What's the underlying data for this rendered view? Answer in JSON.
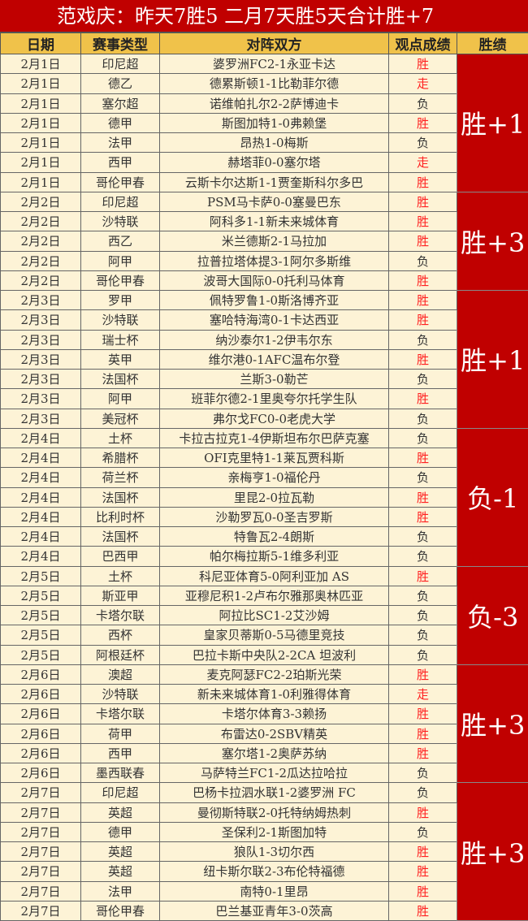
{
  "title": "范戏庆：昨天7胜5  二月7天胜5天合计胜+7",
  "headers": [
    "日期",
    "赛事类型",
    "对阵双方",
    "观点成绩",
    "胜绩"
  ],
  "colors": {
    "title_bg": "#c00000",
    "header_bg": "#f0c24a",
    "row_bg": "#fdf3d6",
    "win_text": "#ff2020",
    "group_bg": "#c00000"
  },
  "groups": [
    {
      "summary": "胜+1",
      "rows": [
        [
          "2月1日",
          "印尼超",
          "婆罗洲FC2-1永亚卡达",
          "胜"
        ],
        [
          "2月1日",
          "德乙",
          "德累斯顿1-1比勒菲尔德",
          "走"
        ],
        [
          "2月1日",
          "塞尔超",
          "诺维帕扎尔2-2萨博迪卡",
          "负"
        ],
        [
          "2月1日",
          "德甲",
          "斯图加特1-0弗赖堡",
          "胜"
        ],
        [
          "2月1日",
          "法甲",
          "昂热1-0梅斯",
          "负"
        ],
        [
          "2月1日",
          "西甲",
          "赫塔菲0-0塞尔塔",
          "走"
        ],
        [
          "2月1日",
          "哥伦甲春",
          "云斯卡尔达斯1-1贾奎斯科尔多巴",
          "胜"
        ]
      ]
    },
    {
      "summary": "胜+3",
      "rows": [
        [
          "2月2日",
          "印尼超",
          "PSM马卡萨0-0塞曼巴东",
          "胜"
        ],
        [
          "2月2日",
          "沙特联",
          "阿科多1-1新未来城体育",
          "胜"
        ],
        [
          "2月2日",
          "西乙",
          "米兰德斯2-1马拉加",
          "胜"
        ],
        [
          "2月2日",
          "阿甲",
          "拉普拉塔体提3-1阿尔多斯维",
          "负"
        ],
        [
          "2月2日",
          "哥伦甲春",
          "波哥大国际0-0托利马体育",
          "胜"
        ]
      ]
    },
    {
      "summary": "胜+1",
      "rows": [
        [
          "2月3日",
          "罗甲",
          "佩特罗鲁1-0斯洛博齐亚",
          "胜"
        ],
        [
          "2月3日",
          "沙特联",
          "塞哈特海湾0-1卡达西亚",
          "胜"
        ],
        [
          "2月3日",
          "瑞士杯",
          "纳沙泰尔1-2伊韦尔东",
          "负"
        ],
        [
          "2月3日",
          "英甲",
          "维尔港0-1AFC温布尔登",
          "胜"
        ],
        [
          "2月3日",
          "法国杯",
          "兰斯3-0勒芒",
          "负"
        ],
        [
          "2月3日",
          "阿甲",
          "班菲尔德2-1里奥夸尔托学生队",
          "胜"
        ],
        [
          "2月3日",
          "美冠杯",
          "弗尔戈FC0-0老虎大学",
          "负"
        ]
      ]
    },
    {
      "summary": "负-1",
      "rows": [
        [
          "2月4日",
          "土杯",
          "卡拉古拉克1-4伊斯坦布尔巴萨克塞",
          "负"
        ],
        [
          "2月4日",
          "希腊杯",
          "OFI克里特1-1莱瓦贾科斯",
          "胜"
        ],
        [
          "2月4日",
          "荷兰杯",
          "亲梅亨1-0福伦丹",
          "负"
        ],
        [
          "2月4日",
          "法国杯",
          "里昆2-0拉瓦勒",
          "胜"
        ],
        [
          "2月4日",
          "比利时杯",
          "沙勒罗瓦0-0圣吉罗斯",
          "胜"
        ],
        [
          "2月4日",
          "法国杯",
          "特鲁瓦2-4朗斯",
          "负"
        ],
        [
          "2月4日",
          "巴西甲",
          "帕尔梅拉斯5-1维多利亚",
          "负"
        ]
      ]
    },
    {
      "summary": "负-3",
      "rows": [
        [
          "2月5日",
          "土杯",
          "科尼亚体育5-0阿利亚加 AS",
          "胜"
        ],
        [
          "2月5日",
          "斯亚甲",
          "亚穆尼积1-2卢布尔雅那奥林匹亚",
          "负"
        ],
        [
          "2月5日",
          "卡塔尔联",
          "阿拉比SC1-2艾沙姆",
          "负"
        ],
        [
          "2月5日",
          "西杯",
          "皇家贝蒂斯0-5马德里竞技",
          "负"
        ],
        [
          "2月5日",
          "阿根廷杯",
          "巴拉卡斯中央队2-2CA 坦波利",
          "负"
        ]
      ]
    },
    {
      "summary": "胜+3",
      "rows": [
        [
          "2月6日",
          "澳超",
          "麦克阿瑟FC2-2珀斯光荣",
          "胜"
        ],
        [
          "2月6日",
          "沙特联",
          "新未来城体育1-0利雅得体育",
          "走"
        ],
        [
          "2月6日",
          "卡塔尔联",
          "卡塔尔体育3-3赖扬",
          "胜"
        ],
        [
          "2月6日",
          "荷甲",
          "布雷达0-2SBV精英",
          "胜"
        ],
        [
          "2月6日",
          "西甲",
          "塞尔塔1-2奥萨苏纳",
          "胜"
        ],
        [
          "2月6日",
          "墨西联春",
          "马萨特兰FC1-2瓜达拉哈拉",
          "负"
        ]
      ]
    },
    {
      "summary": "胜+3",
      "rows": [
        [
          "2月7日",
          "印尼超",
          "巴杨卡拉泗水联1-2婆罗洲 FC",
          "负"
        ],
        [
          "2月7日",
          "英超",
          "曼彻斯特联2-0托特纳姆热刺",
          "胜"
        ],
        [
          "2月7日",
          "德甲",
          "圣保利2-1斯图加特",
          "负"
        ],
        [
          "2月7日",
          "英超",
          "狼队1-3切尔西",
          "胜"
        ],
        [
          "2月7日",
          "英超",
          "纽卡斯尔联2-3布伦特福德",
          "胜"
        ],
        [
          "2月7日",
          "法甲",
          "南特0-1里昂",
          "胜"
        ],
        [
          "2月7日",
          "哥伦甲春",
          "巴兰基亚青年3-0茨高",
          "胜"
        ]
      ]
    }
  ]
}
